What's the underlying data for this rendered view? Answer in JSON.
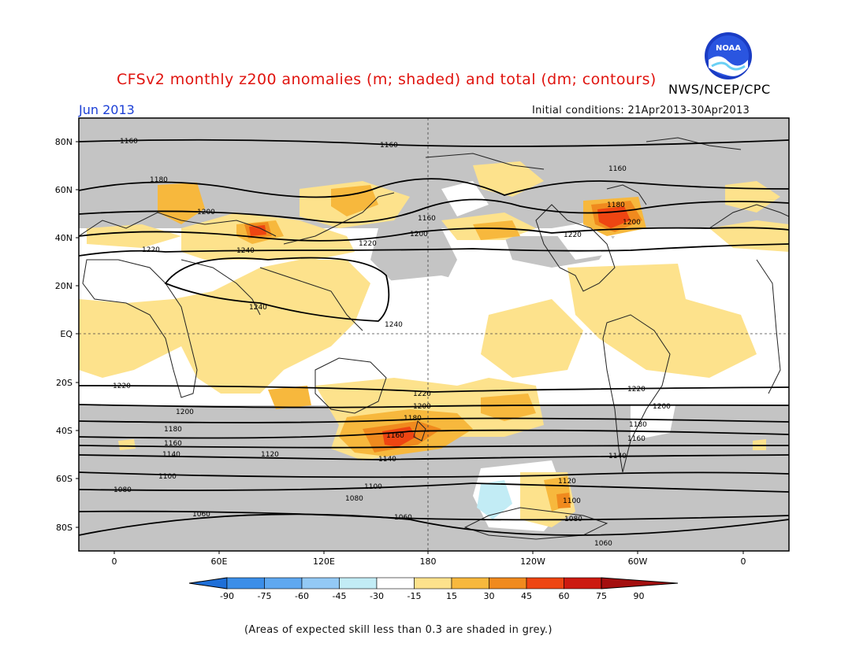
{
  "title": "CFSv2 monthly z200 anomalies (m; shaded) and total (dm; contours)",
  "organization": "NWS/NCEP/CPC",
  "logo_text": "NOAA",
  "month": "Jun 2013",
  "initial_conditions": "Initial conditions: 21Apr2013-30Apr2013",
  "footnote": "(Areas of expected skill less than 0.3 are shaded in grey.)",
  "lat_labels": [
    "80N",
    "60N",
    "40N",
    "20N",
    "EQ",
    "20S",
    "40S",
    "60S",
    "80S"
  ],
  "lon_labels": [
    "0",
    "60E",
    "120E",
    "180",
    "120W",
    "60W",
    "0"
  ],
  "colorbar": {
    "ticks": [
      "-90",
      "-75",
      "-60",
      "-45",
      "-30",
      "-15",
      "15",
      "30",
      "45",
      "60",
      "75",
      "90"
    ],
    "colors": [
      "#1e6fd8",
      "#3b8ee8",
      "#5fa8f0",
      "#93c9f5",
      "#c2ecf5",
      "#ffffff",
      "#fde28c",
      "#f7b83d",
      "#f08a1e",
      "#ee4512",
      "#cc1a10",
      "#a40f0f"
    ]
  },
  "legend_meaning": {
    "grey": "#c4c4c4",
    "contour_color": "#000000"
  },
  "contour_labels": {
    "c1160n_a": "1160",
    "c1160n_b": "1160",
    "c1160n_c": "1160",
    "c1160n_d": "1160",
    "c1180n_a": "1180",
    "c1180n_b": "1180",
    "c1200n_a": "1200",
    "c1200n_b": "1200",
    "c1200n_c": "1200",
    "c1220n_a": "1220",
    "c1220n_b": "1220",
    "c1220n_c": "1220",
    "c1240n_a": "1240",
    "c1240n_b": "1240",
    "c1240n_c": "1240",
    "c1220s_a": "1220",
    "c1220s_b": "1220",
    "c1220s_c": "1220",
    "c1200s_a": "1200",
    "c1200s_b": "1200",
    "c1200s_c": "1200",
    "c1180s_a": "1180",
    "c1180s_b": "1180",
    "c1180s_c": "1180",
    "c1160s_a": "1160",
    "c1160s_b": "1160",
    "c1160s_c": "1160",
    "c1140s_a": "1140",
    "c1140s_b": "1140",
    "c1140s_c": "1140",
    "c1120s_a": "1120",
    "c1120s_b": "1120",
    "c1100s_a": "1100",
    "c1100s_b": "1100",
    "c1100s_c": "1100",
    "c1080s_a": "1080",
    "c1080s_b": "1080",
    "c1080s_c": "1080",
    "c1060s_a": "1060",
    "c1060s_b": "1060",
    "c1060s_c": "1060"
  }
}
